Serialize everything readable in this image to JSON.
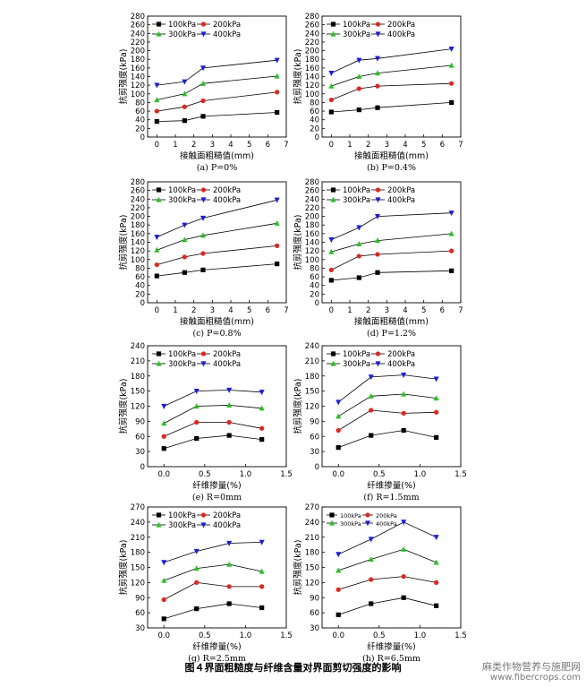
{
  "caption": "图４界面粗糙度与纤维含量对界面剪切强度的影响",
  "watermark": {
    "line1": "麻类作物营养与施肥网",
    "line2": "www.fibercrops.com"
  },
  "series_colors": [
    "#000000",
    "#e8231c",
    "#22c51f",
    "#1a1ae6"
  ],
  "chart_data": [
    {
      "id": "a",
      "type": "line",
      "caption": "(a) P=0%",
      "xlabel": "接触面粗糙值(mm)",
      "ylabel": "抗剪强度(kPa)",
      "xlim": [
        -0.5,
        7
      ],
      "ylim": [
        0,
        280
      ],
      "xticks": [
        0,
        1,
        2,
        3,
        4,
        5,
        6,
        7
      ],
      "yticks": [
        0,
        20,
        40,
        60,
        80,
        100,
        120,
        140,
        160,
        180,
        200,
        220,
        240,
        260,
        280
      ],
      "x": [
        0,
        1.5,
        2.5,
        6.5
      ],
      "series": [
        {
          "name": "100kPa",
          "marker": "square",
          "values": [
            36,
            38,
            48,
            57
          ]
        },
        {
          "name": "200kPa",
          "marker": "circle",
          "values": [
            60,
            70,
            84,
            104
          ]
        },
        {
          "name": "300kPa",
          "marker": "triangle-up",
          "values": [
            86,
            100,
            124,
            141
          ]
        },
        {
          "name": "400kPa",
          "marker": "triangle-down",
          "values": [
            120,
            128,
            160,
            178
          ]
        }
      ]
    },
    {
      "id": "b",
      "type": "line",
      "caption": "(b) P=0.4%",
      "xlabel": "接触面粗糙值(mm)",
      "ylabel": "抗剪强度(kPa)",
      "xlim": [
        -0.5,
        7
      ],
      "ylim": [
        0,
        280
      ],
      "xticks": [
        0,
        1,
        2,
        3,
        4,
        5,
        6,
        7
      ],
      "yticks": [
        0,
        20,
        40,
        60,
        80,
        100,
        120,
        140,
        160,
        180,
        200,
        220,
        240,
        260,
        280
      ],
      "x": [
        0,
        1.5,
        2.5,
        6.5
      ],
      "series": [
        {
          "name": "100kPa",
          "marker": "square",
          "values": [
            58,
            63,
            68,
            80
          ]
        },
        {
          "name": "200kPa",
          "marker": "circle",
          "values": [
            86,
            112,
            118,
            124
          ]
        },
        {
          "name": "300kPa",
          "marker": "triangle-up",
          "values": [
            118,
            140,
            148,
            166
          ]
        },
        {
          "name": "400kPa",
          "marker": "triangle-down",
          "values": [
            148,
            178,
            182,
            204
          ]
        }
      ]
    },
    {
      "id": "c",
      "type": "line",
      "caption": "(c) P=0.8%",
      "xlabel": "接触面粗糙值(mm)",
      "ylabel": "抗剪强度(kPa)",
      "xlim": [
        -0.5,
        7
      ],
      "ylim": [
        0,
        280
      ],
      "xticks": [
        0,
        1,
        2,
        3,
        4,
        5,
        6,
        7
      ],
      "yticks": [
        0,
        20,
        40,
        60,
        80,
        100,
        120,
        140,
        160,
        180,
        200,
        220,
        240,
        260,
        280
      ],
      "x": [
        0,
        1.5,
        2.5,
        6.5
      ],
      "series": [
        {
          "name": "100kPa",
          "marker": "square",
          "values": [
            62,
            70,
            76,
            90
          ]
        },
        {
          "name": "200kPa",
          "marker": "circle",
          "values": [
            88,
            106,
            114,
            132
          ]
        },
        {
          "name": "300kPa",
          "marker": "triangle-up",
          "values": [
            122,
            146,
            156,
            184
          ]
        },
        {
          "name": "400kPa",
          "marker": "triangle-down",
          "values": [
            152,
            180,
            196,
            238
          ]
        }
      ]
    },
    {
      "id": "d",
      "type": "line",
      "caption": "(d) P=1.2%",
      "xlabel": "接触面粗糙值(mm)",
      "ylabel": "抗剪强度(kPa)",
      "xlim": [
        -0.5,
        7
      ],
      "ylim": [
        0,
        280
      ],
      "xticks": [
        0,
        1,
        2,
        3,
        4,
        5,
        6,
        7
      ],
      "yticks": [
        0,
        20,
        40,
        60,
        80,
        100,
        120,
        140,
        160,
        180,
        200,
        220,
        240,
        260,
        280
      ],
      "x": [
        0,
        1.5,
        2.5,
        6.5
      ],
      "series": [
        {
          "name": "100kPa",
          "marker": "square",
          "values": [
            52,
            58,
            70,
            74
          ]
        },
        {
          "name": "200kPa",
          "marker": "circle",
          "values": [
            76,
            108,
            112,
            120
          ]
        },
        {
          "name": "300kPa",
          "marker": "triangle-up",
          "values": [
            118,
            136,
            144,
            160
          ]
        },
        {
          "name": "400kPa",
          "marker": "triangle-down",
          "values": [
            146,
            174,
            200,
            208
          ]
        }
      ]
    },
    {
      "id": "e",
      "type": "line",
      "caption": "(e) R=0mm",
      "xlabel": "纤维掺量(%)",
      "ylabel": "抗剪强度(kPa)",
      "xlim": [
        -0.2,
        1.5
      ],
      "ylim": [
        0,
        240
      ],
      "xticks": [
        0.0,
        0.5,
        1.0,
        1.5
      ],
      "yticks": [
        0,
        30,
        60,
        90,
        120,
        150,
        180,
        210,
        240
      ],
      "xtick_labels": [
        "0.0",
        "0.5",
        "1.0",
        "1.5"
      ],
      "x": [
        0,
        0.4,
        0.8,
        1.2
      ],
      "series": [
        {
          "name": "100kPa",
          "marker": "square",
          "values": [
            36,
            56,
            62,
            54
          ]
        },
        {
          "name": "200kPa",
          "marker": "circle",
          "values": [
            60,
            88,
            88,
            76
          ]
        },
        {
          "name": "300kPa",
          "marker": "triangle-up",
          "values": [
            86,
            120,
            122,
            116
          ]
        },
        {
          "name": "400kPa",
          "marker": "triangle-down",
          "values": [
            120,
            150,
            152,
            148
          ]
        }
      ]
    },
    {
      "id": "f",
      "type": "line",
      "caption": "(f) R=1.5mm",
      "xlabel": "纤维掺量(%)",
      "ylabel": "抗剪强度(kPa)",
      "xlim": [
        -0.2,
        1.5
      ],
      "ylim": [
        0,
        240
      ],
      "xticks": [
        0.0,
        0.5,
        1.0,
        1.5
      ],
      "yticks": [
        0,
        30,
        60,
        90,
        120,
        150,
        180,
        210,
        240
      ],
      "xtick_labels": [
        "0.0",
        "0.5",
        "1.0",
        "1.5"
      ],
      "x": [
        0,
        0.4,
        0.8,
        1.2
      ],
      "series": [
        {
          "name": "100kPa",
          "marker": "square",
          "values": [
            38,
            62,
            72,
            58
          ]
        },
        {
          "name": "200kPa",
          "marker": "circle",
          "values": [
            72,
            112,
            106,
            108
          ]
        },
        {
          "name": "300kPa",
          "marker": "triangle-up",
          "values": [
            100,
            140,
            144,
            136
          ]
        },
        {
          "name": "400kPa",
          "marker": "triangle-down",
          "values": [
            128,
            178,
            182,
            174
          ]
        }
      ]
    },
    {
      "id": "g",
      "type": "line",
      "caption": "(g) R=2.5mm",
      "xlabel": "纤维掺量(%)",
      "ylabel": "抗剪强度(kPa)",
      "xlim": [
        -0.2,
        1.5
      ],
      "ylim": [
        30,
        270
      ],
      "xticks": [
        0.0,
        0.5,
        1.0,
        1.5
      ],
      "yticks": [
        30,
        60,
        90,
        120,
        150,
        180,
        210,
        240,
        270
      ],
      "xtick_labels": [
        "0.0",
        "0.5",
        "1.0",
        "1.5"
      ],
      "x": [
        0,
        0.4,
        0.8,
        1.2
      ],
      "series": [
        {
          "name": "100kPa",
          "marker": "square",
          "values": [
            48,
            68,
            78,
            70
          ]
        },
        {
          "name": "200kPa",
          "marker": "circle",
          "values": [
            86,
            120,
            112,
            112
          ]
        },
        {
          "name": "300kPa",
          "marker": "triangle-up",
          "values": [
            124,
            148,
            156,
            142
          ]
        },
        {
          "name": "400kPa",
          "marker": "triangle-down",
          "values": [
            160,
            182,
            198,
            200
          ]
        }
      ]
    },
    {
      "id": "h",
      "type": "line",
      "caption": "(h) R=6.5mm",
      "xlabel": "纤维掺量(%)",
      "ylabel": "抗剪强度(kPa)",
      "xlim": [
        -0.2,
        1.5
      ],
      "ylim": [
        30,
        270
      ],
      "xticks": [
        0.0,
        0.5,
        1.0,
        1.5
      ],
      "yticks": [
        30,
        60,
        90,
        120,
        150,
        180,
        210,
        240,
        270
      ],
      "xtick_labels": [
        "0.0",
        "0.5",
        "1.0",
        "1.5"
      ],
      "x": [
        0,
        0.4,
        0.8,
        1.2
      ],
      "series": [
        {
          "name": "100kPa",
          "marker": "square",
          "values": [
            56,
            78,
            90,
            74
          ]
        },
        {
          "name": "200kPa",
          "marker": "circle",
          "values": [
            106,
            126,
            132,
            120
          ]
        },
        {
          "name": "300kPa",
          "marker": "triangle-up",
          "values": [
            144,
            166,
            186,
            160
          ]
        },
        {
          "name": "400kPa",
          "marker": "triangle-down",
          "values": [
            176,
            206,
            240,
            210
          ]
        }
      ]
    }
  ]
}
